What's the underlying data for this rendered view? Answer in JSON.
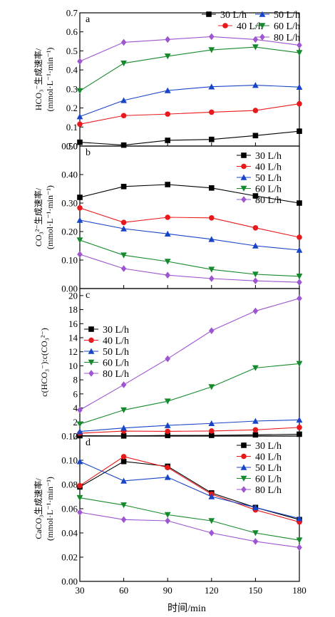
{
  "figure": {
    "xlabel": "时间/min"
  },
  "chart_data": [
    {
      "type": "line",
      "panel_label": "a",
      "ylabel": [
        "HCO₃⁻生成速率/",
        "(mmol·L⁻¹·min⁻¹)"
      ],
      "x": [
        30,
        60,
        90,
        120,
        150,
        180
      ],
      "xlim": [
        30,
        180
      ],
      "ylim": [
        0,
        0.7
      ],
      "yticks": [
        0.0,
        0.1,
        0.2,
        0.3,
        0.4,
        0.5,
        0.6,
        0.7
      ],
      "ytick_labels": [
        "0.0",
        "0.1",
        "0.2",
        "0.3",
        "0.4",
        "0.5",
        "0.6",
        "0.7"
      ],
      "legend": "top-right-two-columns",
      "series": [
        {
          "name": "30 L/h",
          "color": "#000000",
          "marker": "square",
          "values": [
            0.02,
            0.005,
            0.03,
            0.035,
            0.055,
            0.078
          ]
        },
        {
          "name": "40 L/h",
          "color": "#e8191b",
          "marker": "circle",
          "values": [
            0.115,
            0.16,
            0.168,
            0.178,
            0.187,
            0.222
          ]
        },
        {
          "name": "50 L/h",
          "color": "#1844c8",
          "marker": "triangle-up",
          "values": [
            0.155,
            0.24,
            0.292,
            0.312,
            0.32,
            0.31
          ]
        },
        {
          "name": "60 L/h",
          "color": "#158a2c",
          "marker": "triangle-down",
          "values": [
            0.29,
            0.435,
            0.472,
            0.505,
            0.52,
            0.49
          ]
        },
        {
          "name": "80 L/h",
          "color": "#9d55d0",
          "marker": "diamond",
          "values": [
            0.445,
            0.545,
            0.56,
            0.575,
            0.56,
            0.53
          ]
        }
      ]
    },
    {
      "type": "line",
      "panel_label": "b",
      "ylabel": [
        "CO₃²⁻生成速率/",
        "(mmol·L⁻¹·min⁻¹)"
      ],
      "x": [
        30,
        60,
        90,
        120,
        150,
        180
      ],
      "xlim": [
        30,
        180
      ],
      "ylim": [
        0,
        0.5
      ],
      "yticks": [
        0.0,
        0.1,
        0.2,
        0.3,
        0.4,
        0.5
      ],
      "ytick_labels": [
        "0.00",
        "0.10",
        "0.20",
        "0.30",
        "0.40",
        "0.50"
      ],
      "legend": "top-right",
      "series": [
        {
          "name": "30 L/h",
          "color": "#000000",
          "marker": "square",
          "values": [
            0.32,
            0.358,
            0.365,
            0.353,
            0.325,
            0.3
          ]
        },
        {
          "name": "40 L/h",
          "color": "#e8191b",
          "marker": "circle",
          "values": [
            0.283,
            0.232,
            0.25,
            0.248,
            0.213,
            0.18
          ]
        },
        {
          "name": "50 L/h",
          "color": "#1844c8",
          "marker": "triangle-up",
          "values": [
            0.24,
            0.21,
            0.192,
            0.173,
            0.15,
            0.135
          ]
        },
        {
          "name": "60 L/h",
          "color": "#158a2c",
          "marker": "triangle-down",
          "values": [
            0.17,
            0.117,
            0.095,
            0.067,
            0.05,
            0.043
          ]
        },
        {
          "name": "80 L/h",
          "color": "#9d55d0",
          "marker": "diamond",
          "values": [
            0.12,
            0.07,
            0.047,
            0.035,
            0.027,
            0.022
          ]
        }
      ]
    },
    {
      "type": "line",
      "panel_label": "c",
      "ylabel": [
        "c(HCO₃⁻):c(CO₃²⁻)"
      ],
      "x": [
        30,
        60,
        90,
        120,
        150,
        180
      ],
      "xlim": [
        30,
        180
      ],
      "ylim": [
        0,
        21
      ],
      "yticks": [
        0,
        2,
        4,
        6,
        8,
        10,
        12,
        14,
        16,
        18,
        20
      ],
      "ytick_labels": [
        "0",
        "2",
        "4",
        "6",
        "8",
        "10",
        "12",
        "14",
        "16",
        "18",
        "20"
      ],
      "legend": "upper-left",
      "series": [
        {
          "name": "30 L/h",
          "color": "#000000",
          "marker": "square",
          "values": [
            0.05,
            0.02,
            0.08,
            0.1,
            0.17,
            0.26
          ]
        },
        {
          "name": "40 L/h",
          "color": "#e8191b",
          "marker": "circle",
          "values": [
            0.4,
            0.7,
            0.67,
            0.72,
            0.88,
            1.23
          ]
        },
        {
          "name": "50 L/h",
          "color": "#1844c8",
          "marker": "triangle-up",
          "values": [
            0.65,
            1.15,
            1.52,
            1.8,
            2.13,
            2.3
          ]
        },
        {
          "name": "60 L/h",
          "color": "#158a2c",
          "marker": "triangle-down",
          "values": [
            1.7,
            3.7,
            4.95,
            7.0,
            9.7,
            10.3
          ]
        },
        {
          "name": "80 L/h",
          "color": "#9d55d0",
          "marker": "diamond",
          "values": [
            3.7,
            7.3,
            11.0,
            15.0,
            17.8,
            19.6
          ]
        }
      ]
    },
    {
      "type": "line",
      "panel_label": "d",
      "ylabel": [
        "CaCO₃生成速率/",
        "(mmol·L⁻¹·min⁻¹)"
      ],
      "x": [
        30,
        60,
        90,
        120,
        150,
        180
      ],
      "xlim": [
        30,
        180
      ],
      "ylim": [
        0,
        0.12
      ],
      "yticks": [
        0.0,
        0.02,
        0.04,
        0.06,
        0.08,
        0.1,
        0.12
      ],
      "ytick_labels": [
        "0.00",
        "0.02",
        "0.04",
        "0.06",
        "0.08",
        "0.10",
        "0.12"
      ],
      "xticks": [
        30,
        60,
        90,
        120,
        150,
        180
      ],
      "xtick_labels": [
        "30",
        "60",
        "90",
        "120",
        "150",
        "180"
      ],
      "legend": "top-right",
      "series": [
        {
          "name": "30 L/h",
          "color": "#000000",
          "marker": "square",
          "values": [
            0.078,
            0.099,
            0.095,
            0.073,
            0.061,
            0.051
          ]
        },
        {
          "name": "40 L/h",
          "color": "#e8191b",
          "marker": "circle",
          "values": [
            0.079,
            0.103,
            0.094,
            0.072,
            0.059,
            0.049
          ]
        },
        {
          "name": "50 L/h",
          "color": "#1844c8",
          "marker": "triangle-up",
          "values": [
            0.099,
            0.083,
            0.086,
            0.07,
            0.061,
            0.052
          ]
        },
        {
          "name": "60 L/h",
          "color": "#158a2c",
          "marker": "triangle-down",
          "values": [
            0.069,
            0.063,
            0.055,
            0.05,
            0.04,
            0.034
          ]
        },
        {
          "name": "80 L/h",
          "color": "#9d55d0",
          "marker": "diamond",
          "values": [
            0.057,
            0.051,
            0.05,
            0.04,
            0.033,
            0.028
          ]
        }
      ]
    }
  ]
}
